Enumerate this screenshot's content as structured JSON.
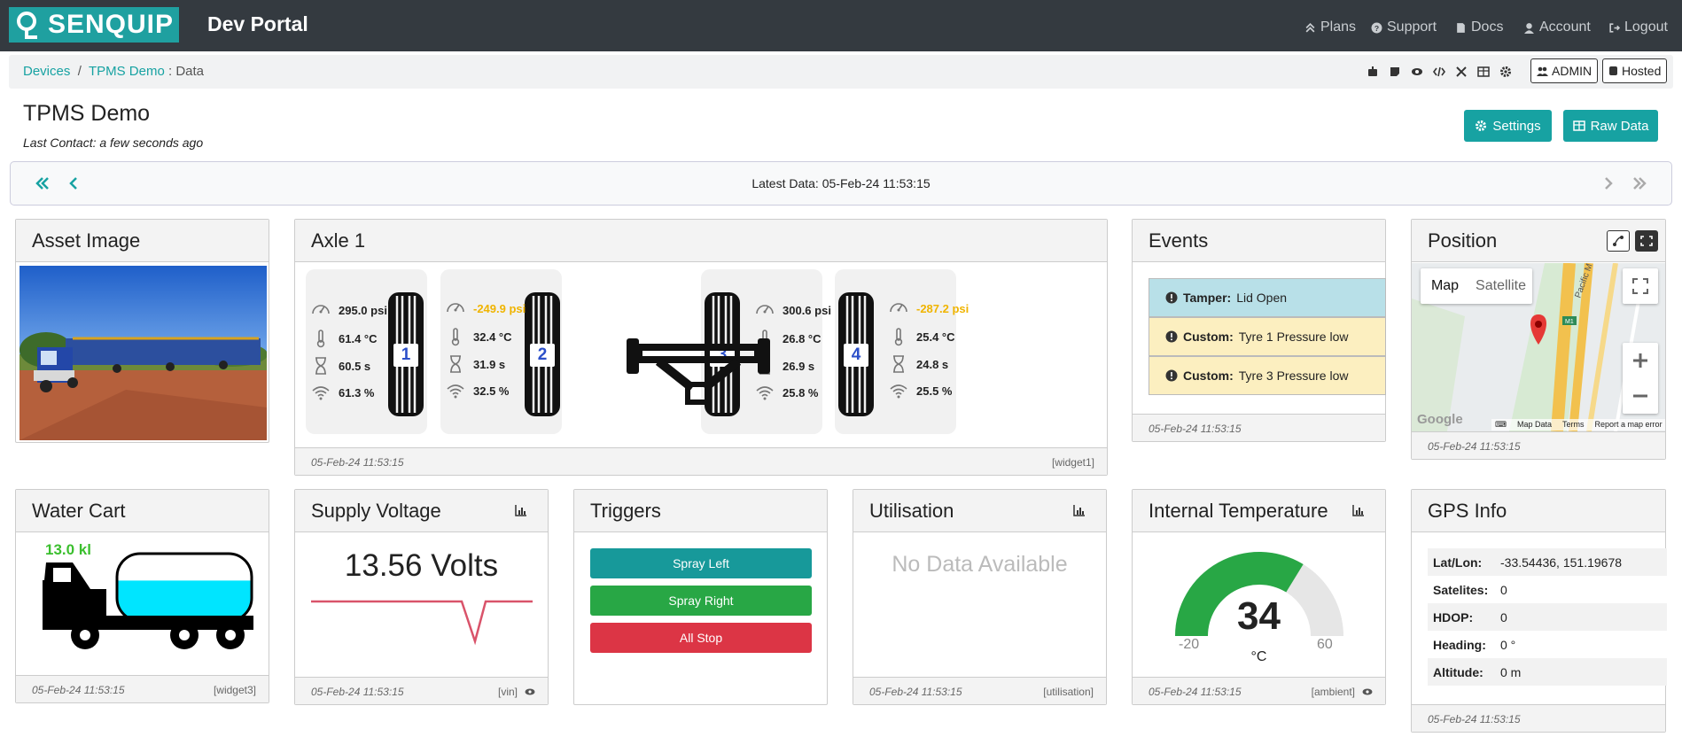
{
  "nav": {
    "brand": "SENQUIP",
    "portal": "Dev Portal",
    "links": [
      "Plans",
      "Support",
      "Docs",
      "Account",
      "Logout"
    ]
  },
  "breadcrumb": {
    "devices": "Devices",
    "device": "TPMS Demo",
    "page": ": Data"
  },
  "toolbar": {
    "admin": "ADMIN",
    "hosted": "Hosted"
  },
  "page": {
    "title": "TPMS Demo",
    "last_contact": "Last Contact: a few seconds ago",
    "settings": "Settings",
    "raw_data": "Raw Data"
  },
  "databar": {
    "latest": "Latest Data: 05-Feb-24 11:53:15"
  },
  "asset": {
    "title": "Asset Image"
  },
  "axle": {
    "title": "Axle 1",
    "footer_time": "05-Feb-24 11:53:15",
    "footer_tag": "[widget1]",
    "tyres": [
      {
        "num": "1",
        "pressure": "295.0 psi",
        "temp": "61.4 °C",
        "time": "60.5 s",
        "signal": "61.3 %",
        "warn": false
      },
      {
        "num": "2",
        "pressure": "-249.9 psi",
        "temp": "32.4 °C",
        "time": "31.9 s",
        "signal": "32.5 %",
        "warn": true
      },
      {
        "num": "3",
        "pressure": "300.6 psi",
        "temp": "26.8 °C",
        "time": "26.9 s",
        "signal": "25.8 %",
        "warn": false
      },
      {
        "num": "4",
        "pressure": "-287.2 psi",
        "temp": "25.4 °C",
        "time": "24.8 s",
        "signal": "25.5 %",
        "warn": true
      }
    ]
  },
  "events": {
    "title": "Events",
    "items": [
      {
        "label": "Tamper:",
        "text": "Lid Open",
        "color": "#b8e0e8"
      },
      {
        "label": "Custom:",
        "text": "Tyre 1 Pressure low",
        "color": "#fcefc0"
      },
      {
        "label": "Custom:",
        "text": "Tyre 3 Pressure low",
        "color": "#fcefc0"
      }
    ],
    "footer_time": "05-Feb-24 11:53:15"
  },
  "position": {
    "title": "Position",
    "map_btn": "Map",
    "sat_btn": "Satellite",
    "road_label": "Pacific M",
    "route_label": "M1",
    "map_data": "Map Data",
    "terms": "Terms",
    "report": "Report a map error",
    "google": "Google",
    "footer_time": "05-Feb-24 11:53:15"
  },
  "water": {
    "title": "Water Cart",
    "level_text": "13.0 kl",
    "level_fraction": 0.6,
    "footer_time": "05-Feb-24 11:53:15",
    "footer_tag": "[widget3]"
  },
  "voltage": {
    "title": "Supply Voltage",
    "value": "13.56 Volts",
    "footer_time": "05-Feb-24 11:53:15",
    "footer_tag": "[vin]"
  },
  "triggers": {
    "title": "Triggers",
    "buttons": [
      {
        "label": "Spray Left",
        "color": "#17999a"
      },
      {
        "label": "Spray Right",
        "color": "#28a745"
      },
      {
        "label": "All Stop",
        "color": "#dc3545"
      }
    ]
  },
  "util": {
    "title": "Utilisation",
    "nodata": "No Data Available",
    "footer_time": "05-Feb-24 11:53:15",
    "footer_tag": "[utilisation]"
  },
  "temp": {
    "title": "Internal Temperature",
    "value": "34",
    "unit": "°C",
    "min": "-20",
    "max": "60",
    "value_num": 34,
    "min_num": -20,
    "max_num": 60,
    "footer_time": "05-Feb-24 11:53:15",
    "footer_tag": "[ambient]"
  },
  "gps": {
    "title": "GPS Info",
    "rows": [
      {
        "k": "Lat/Lon:",
        "v": "-33.54436, 151.19678"
      },
      {
        "k": "Satelites:",
        "v": "0"
      },
      {
        "k": "HDOP:",
        "v": "0"
      },
      {
        "k": "Heading:",
        "v": "0 °"
      },
      {
        "k": "Altitude:",
        "v": "0 m"
      }
    ],
    "footer_time": "05-Feb-24 11:53:15"
  },
  "colors": {
    "teal": "#17a2a2",
    "gauge_green": "#28a745",
    "warn": "#f0b400"
  }
}
